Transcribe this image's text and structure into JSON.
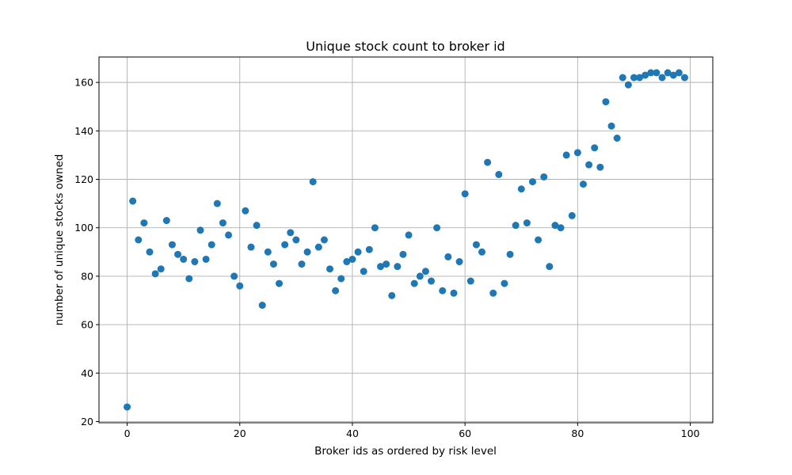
{
  "chart_data": {
    "type": "scatter",
    "title": "Unique stock count to broker id",
    "xlabel": "Broker ids as ordered by risk level",
    "ylabel": "number of unique stocks owned",
    "xlim": [
      -5,
      104
    ],
    "ylim": [
      19.5,
      170.5
    ],
    "xticks": [
      0,
      20,
      40,
      60,
      80,
      100
    ],
    "yticks": [
      20,
      40,
      60,
      80,
      100,
      120,
      140,
      160
    ],
    "grid": true,
    "marker_color": "#1f77b4",
    "x": [
      0,
      1,
      2,
      3,
      4,
      5,
      6,
      7,
      8,
      9,
      10,
      11,
      12,
      13,
      14,
      15,
      16,
      17,
      18,
      19,
      20,
      21,
      22,
      23,
      24,
      25,
      26,
      27,
      28,
      29,
      30,
      31,
      32,
      33,
      34,
      35,
      36,
      37,
      38,
      39,
      40,
      41,
      42,
      43,
      44,
      45,
      46,
      47,
      48,
      49,
      50,
      51,
      52,
      53,
      54,
      55,
      56,
      57,
      58,
      59,
      60,
      61,
      62,
      63,
      64,
      65,
      66,
      67,
      68,
      69,
      70,
      71,
      72,
      73,
      74,
      75,
      76,
      77,
      78,
      79,
      80,
      81,
      82,
      83,
      84,
      85,
      86,
      87,
      88,
      89,
      90,
      91,
      92,
      93,
      94,
      95,
      96,
      97,
      98,
      99
    ],
    "y": [
      26,
      111,
      95,
      102,
      90,
      81,
      83,
      103,
      93,
      89,
      87,
      79,
      86,
      99,
      87,
      93,
      110,
      102,
      97,
      80,
      76,
      107,
      92,
      101,
      68,
      90,
      85,
      77,
      93,
      98,
      95,
      85,
      90,
      119,
      92,
      95,
      83,
      74,
      79,
      86,
      87,
      90,
      82,
      91,
      100,
      84,
      85,
      72,
      84,
      89,
      97,
      77,
      80,
      82,
      78,
      100,
      74,
      88,
      73,
      86,
      114,
      78,
      93,
      90,
      127,
      73,
      122,
      77,
      89,
      101,
      116,
      102,
      119,
      95,
      121,
      84,
      101,
      100,
      130,
      105,
      131,
      118,
      126,
      133,
      125,
      152,
      142,
      137,
      162,
      159,
      162,
      162,
      163,
      164,
      164,
      162,
      164,
      163,
      164,
      162
    ]
  }
}
